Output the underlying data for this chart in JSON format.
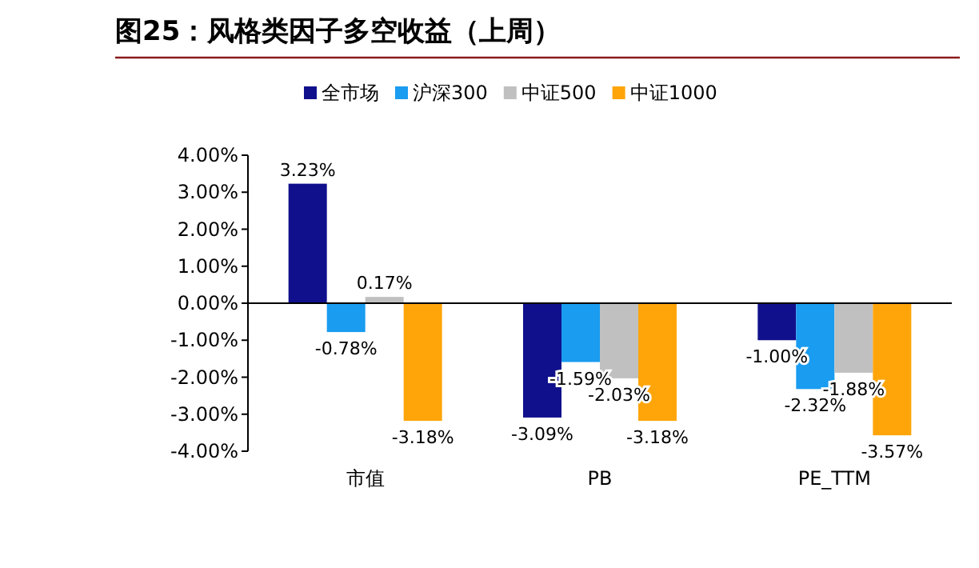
{
  "chart_data": {
    "type": "bar",
    "title": "图25：风格类因子多空收益（上周）",
    "categories": [
      "市值",
      "PB",
      "PE_TTM"
    ],
    "series": [
      {
        "name": "全市场",
        "color": "#10108c",
        "values": [
          3.23,
          -3.09,
          -1.0
        ],
        "value_labels": [
          "3.23%",
          "-3.09%",
          "-1.00%"
        ]
      },
      {
        "name": "沪深300",
        "color": "#1a9cf0",
        "values": [
          -0.78,
          -1.59,
          -2.32
        ],
        "value_labels": [
          "-0.78%",
          "-1.59%",
          "-2.32%"
        ]
      },
      {
        "name": "中证500",
        "color": "#c0c0c0",
        "values": [
          0.17,
          -2.03,
          -1.88
        ],
        "value_labels": [
          "0.17%",
          "-2.03%",
          "-1.88%"
        ]
      },
      {
        "name": "中证1000",
        "color": "#ffa50a",
        "values": [
          -3.18,
          -3.18,
          -3.57
        ],
        "value_labels": [
          "-3.18%",
          "-3.18%",
          "-3.57%"
        ]
      }
    ],
    "ylim": [
      -4,
      4
    ],
    "yticks": [
      {
        "value": -4,
        "label": "-4.00%"
      },
      {
        "value": -3,
        "label": "-3.00%"
      },
      {
        "value": -2,
        "label": "-2.00%"
      },
      {
        "value": -1,
        "label": "-1.00%"
      },
      {
        "value": 0,
        "label": "0.00%"
      },
      {
        "value": 1,
        "label": "1.00%"
      },
      {
        "value": 2,
        "label": "2.00%"
      },
      {
        "value": 3,
        "label": "3.00%"
      },
      {
        "value": 4,
        "label": "4.00%"
      }
    ],
    "legend": "top"
  }
}
